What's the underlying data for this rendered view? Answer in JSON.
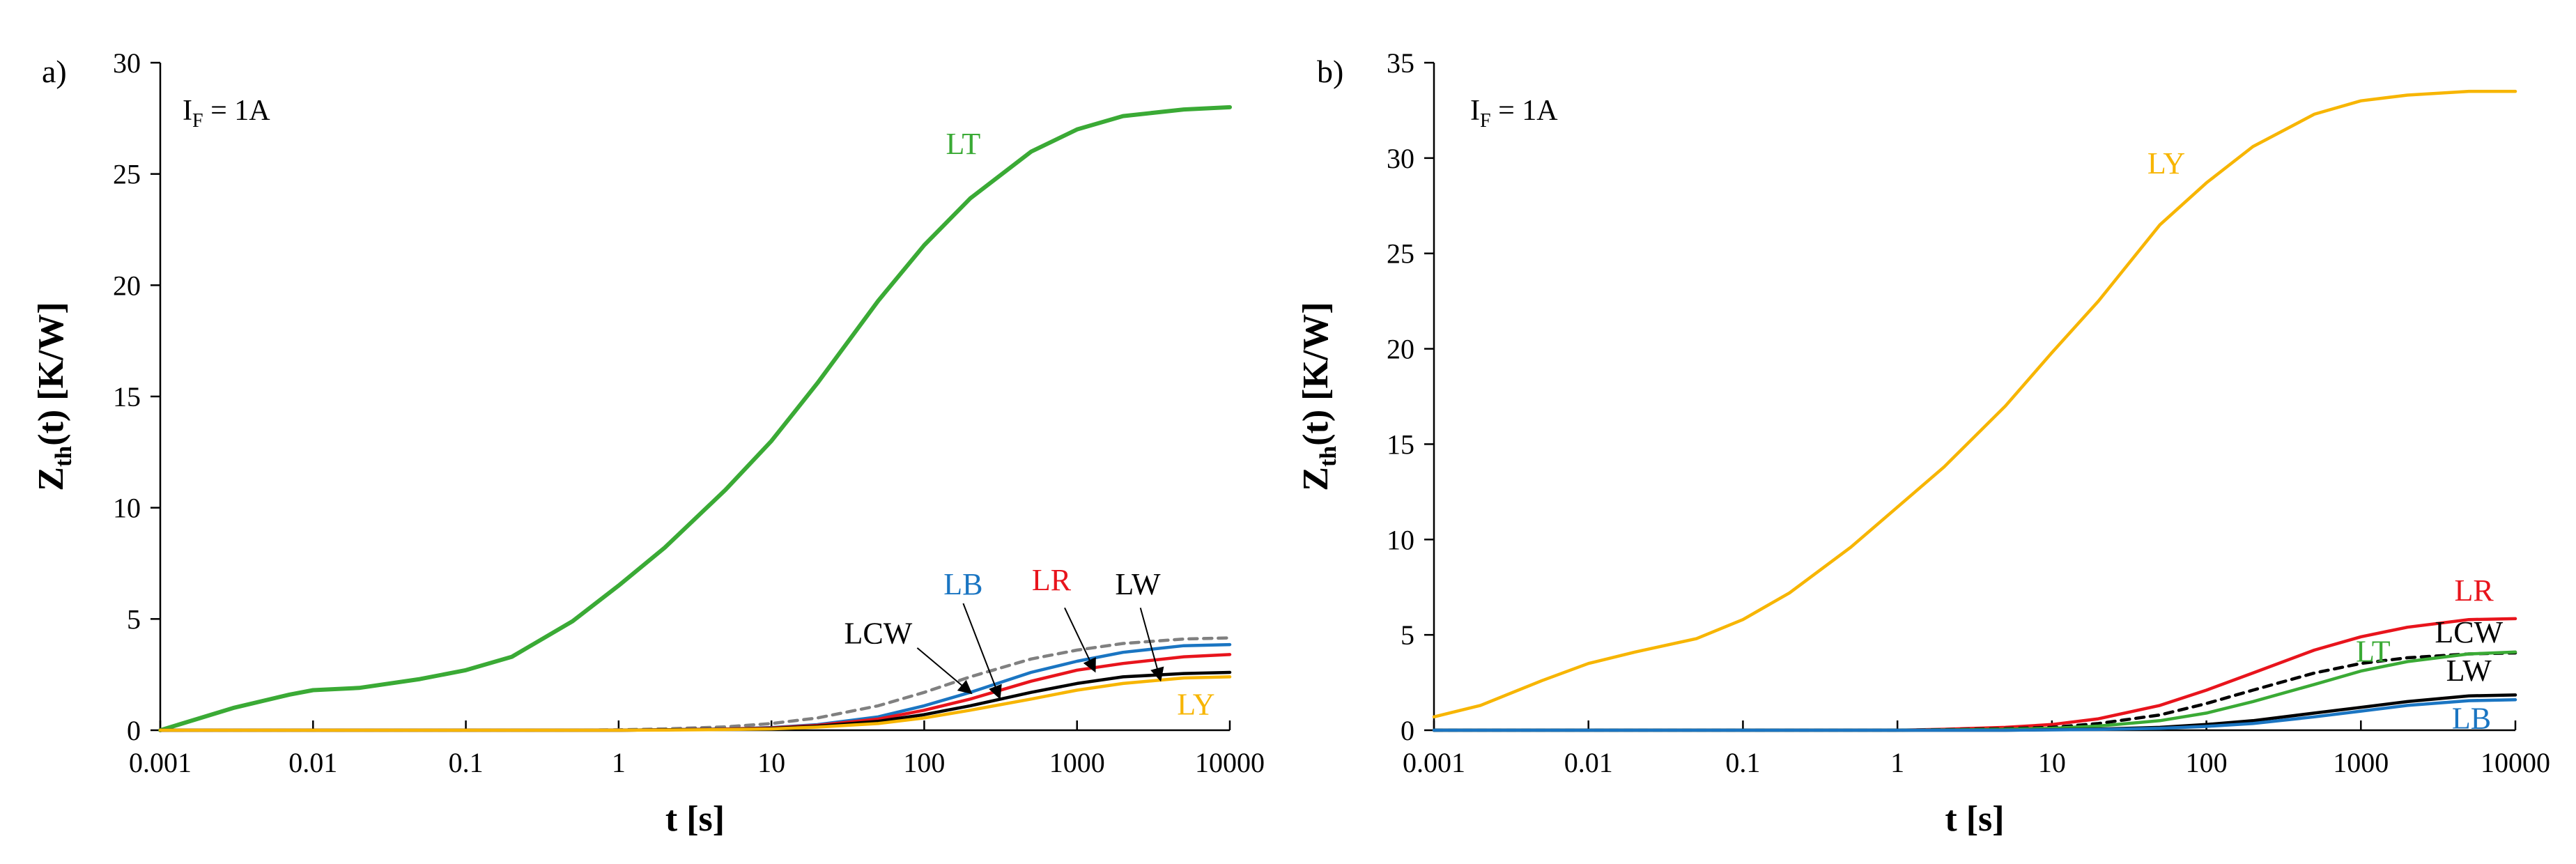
{
  "chart_data": [
    {
      "type": "line",
      "panel_label": "a)",
      "xscale": "log",
      "xlim": [
        0.001,
        10000
      ],
      "ylim": [
        0,
        30
      ],
      "xticks": [
        "0.001",
        "0.01",
        "0.1",
        "1",
        "10",
        "100",
        "1000",
        "10000"
      ],
      "yticks": [
        "0",
        "5",
        "10",
        "15",
        "20",
        "25",
        "30"
      ],
      "xlabel": "t [s]",
      "ylabel_main": "Z",
      "ylabel_sub": "th",
      "ylabel_rest": "(t) [K/W]",
      "annotation_main": "I",
      "annotation_sub": "F",
      "annotation_rest": " = 1A",
      "series": [
        {
          "name": "LT",
          "color": "#3aaa35",
          "dash": false,
          "x": [
            0.001,
            0.003,
            0.007,
            0.01,
            0.02,
            0.05,
            0.1,
            0.2,
            0.5,
            1,
            2,
            5,
            10,
            20,
            50,
            100,
            200,
            500,
            1000,
            2000,
            5000,
            10000
          ],
          "y": [
            0,
            1.0,
            1.6,
            1.8,
            1.9,
            2.3,
            2.7,
            3.3,
            4.9,
            6.5,
            8.2,
            10.8,
            13.0,
            15.6,
            19.3,
            21.8,
            23.9,
            26.0,
            27.0,
            27.6,
            27.9,
            28.0
          ]
        },
        {
          "name": "LCW",
          "color": "#808080",
          "dash": true,
          "x": [
            0.001,
            0.5,
            1,
            2,
            5,
            10,
            20,
            50,
            100,
            200,
            500,
            1000,
            2000,
            5000,
            10000
          ],
          "y": [
            0,
            0,
            0.02,
            0.06,
            0.15,
            0.3,
            0.55,
            1.1,
            1.7,
            2.4,
            3.2,
            3.6,
            3.9,
            4.1,
            4.15
          ]
        },
        {
          "name": "LB",
          "color": "#1a75c2",
          "dash": false,
          "x": [
            0.001,
            1,
            2,
            5,
            10,
            20,
            50,
            100,
            200,
            500,
            1000,
            2000,
            5000,
            10000
          ],
          "y": [
            0,
            0,
            0.02,
            0.05,
            0.12,
            0.25,
            0.6,
            1.1,
            1.7,
            2.6,
            3.1,
            3.5,
            3.8,
            3.85
          ]
        },
        {
          "name": "LR",
          "color": "#e8141c",
          "dash": false,
          "x": [
            0.001,
            1,
            2,
            5,
            10,
            20,
            50,
            100,
            200,
            500,
            1000,
            2000,
            5000,
            10000
          ],
          "y": [
            0,
            0,
            0.02,
            0.05,
            0.1,
            0.22,
            0.5,
            0.9,
            1.4,
            2.2,
            2.7,
            3.0,
            3.3,
            3.4
          ]
        },
        {
          "name": "LW",
          "color": "#000000",
          "dash": false,
          "x": [
            0.001,
            1,
            2,
            5,
            10,
            20,
            50,
            100,
            200,
            500,
            1000,
            2000,
            5000,
            10000
          ],
          "y": [
            0,
            0,
            0.02,
            0.04,
            0.08,
            0.18,
            0.4,
            0.7,
            1.1,
            1.7,
            2.1,
            2.4,
            2.55,
            2.6
          ]
        },
        {
          "name": "LY",
          "color": "#f7b500",
          "dash": false,
          "x": [
            0.001,
            1,
            2,
            5,
            10,
            20,
            50,
            100,
            200,
            500,
            1000,
            2000,
            5000,
            10000
          ],
          "y": [
            0,
            0,
            0.01,
            0.03,
            0.06,
            0.14,
            0.3,
            0.55,
            0.9,
            1.4,
            1.8,
            2.1,
            2.35,
            2.4
          ]
        }
      ],
      "labels": [
        {
          "text": "LT",
          "color": "#3aaa35",
          "x": 180,
          "y": 25.9
        },
        {
          "text": "LB",
          "color": "#1a75c2",
          "x": 180,
          "y": 6.1
        },
        {
          "text": "LR",
          "color": "#e8141c",
          "x": 680,
          "y": 6.3
        },
        {
          "text": "LW",
          "color": "#000000",
          "x": 2500,
          "y": 6.1
        },
        {
          "text": "LCW",
          "color": "#000000",
          "x": 50,
          "y": 3.9
        },
        {
          "text": "LY",
          "color": "#f7b500",
          "x": 6000,
          "y": 0.7
        }
      ],
      "arrows": [
        {
          "from": [
            90,
            3.7
          ],
          "to": [
            200,
            1.7
          ]
        },
        {
          "from": [
            180,
            5.7
          ],
          "to": [
            310,
            1.5
          ]
        },
        {
          "from": [
            830,
            5.5
          ],
          "to": [
            1300,
            2.7
          ]
        },
        {
          "from": [
            2600,
            5.5
          ],
          "to": [
            3500,
            2.3
          ]
        }
      ]
    },
    {
      "type": "line",
      "panel_label": "b)",
      "xscale": "log",
      "xlim": [
        0.001,
        10000
      ],
      "ylim": [
        0,
        35
      ],
      "xticks": [
        "0.001",
        "0.01",
        "0.1",
        "1",
        "10",
        "100",
        "1000",
        "10000"
      ],
      "yticks": [
        "0",
        "5",
        "10",
        "15",
        "20",
        "25",
        "30",
        "35"
      ],
      "xlabel": "t [s]",
      "ylabel_main": "Z",
      "ylabel_sub": "th",
      "ylabel_rest": "(t) [K/W]",
      "annotation_main": "I",
      "annotation_sub": "F",
      "annotation_rest": " = 1A",
      "series": [
        {
          "name": "LY",
          "color": "#f7b500",
          "dash": false,
          "x": [
            0.001,
            0.002,
            0.005,
            0.01,
            0.02,
            0.05,
            0.1,
            0.2,
            0.5,
            1,
            2,
            5,
            10,
            20,
            50,
            100,
            200,
            500,
            1000,
            2000,
            5000,
            10000
          ],
          "y": [
            0.7,
            1.3,
            2.6,
            3.5,
            4.1,
            4.8,
            5.8,
            7.2,
            9.6,
            11.7,
            13.8,
            17.0,
            19.8,
            22.5,
            26.5,
            28.7,
            30.6,
            32.3,
            33.0,
            33.3,
            33.5,
            33.5
          ]
        },
        {
          "name": "LR",
          "color": "#e8141c",
          "dash": false,
          "x": [
            0.001,
            1,
            2,
            5,
            10,
            20,
            50,
            100,
            200,
            500,
            1000,
            2000,
            5000,
            10000
          ],
          "y": [
            0,
            0,
            0.05,
            0.15,
            0.3,
            0.6,
            1.3,
            2.1,
            3.0,
            4.2,
            4.9,
            5.4,
            5.8,
            5.85
          ]
        },
        {
          "name": "LCW",
          "color": "#000000",
          "dash": true,
          "x": [
            0.001,
            1,
            2,
            5,
            10,
            20,
            50,
            100,
            200,
            500,
            1000,
            2000,
            5000,
            10000
          ],
          "y": [
            0,
            0,
            0.03,
            0.08,
            0.15,
            0.35,
            0.8,
            1.4,
            2.1,
            3.0,
            3.5,
            3.8,
            4.0,
            4.05
          ]
        },
        {
          "name": "LT",
          "color": "#3aaa35",
          "dash": false,
          "x": [
            0.001,
            1,
            2,
            5,
            10,
            20,
            50,
            100,
            200,
            500,
            1000,
            2000,
            5000,
            10000
          ],
          "y": [
            0,
            0,
            0.02,
            0.05,
            0.1,
            0.22,
            0.5,
            0.9,
            1.5,
            2.4,
            3.1,
            3.6,
            4.0,
            4.1
          ]
        },
        {
          "name": "LW",
          "color": "#000000",
          "dash": false,
          "x": [
            0.001,
            5,
            10,
            20,
            50,
            100,
            200,
            500,
            1000,
            2000,
            5000,
            10000
          ],
          "y": [
            0,
            0,
            0.03,
            0.06,
            0.15,
            0.3,
            0.5,
            0.9,
            1.2,
            1.5,
            1.8,
            1.85
          ]
        },
        {
          "name": "LB",
          "color": "#1a75c2",
          "dash": false,
          "x": [
            0.001,
            5,
            10,
            20,
            50,
            100,
            200,
            500,
            1000,
            2000,
            5000,
            10000
          ],
          "y": [
            0,
            0,
            0.02,
            0.04,
            0.1,
            0.2,
            0.35,
            0.7,
            1.0,
            1.3,
            1.55,
            1.6
          ]
        }
      ],
      "labels": [
        {
          "text": "LY",
          "color": "#f7b500",
          "x": 55,
          "y": 29.2
        },
        {
          "text": "LR",
          "color": "#e8141c",
          "x": 5400,
          "y": 6.8
        },
        {
          "text": "LCW",
          "color": "#000000",
          "x": 5000,
          "y": 4.6
        },
        {
          "text": "LT",
          "color": "#3aaa35",
          "x": 1200,
          "y": 3.6
        },
        {
          "text": "LW",
          "color": "#000000",
          "x": 5000,
          "y": 2.6
        },
        {
          "text": "LB",
          "color": "#1a75c2",
          "x": 5200,
          "y": 0.1
        }
      ],
      "arrows": []
    }
  ]
}
